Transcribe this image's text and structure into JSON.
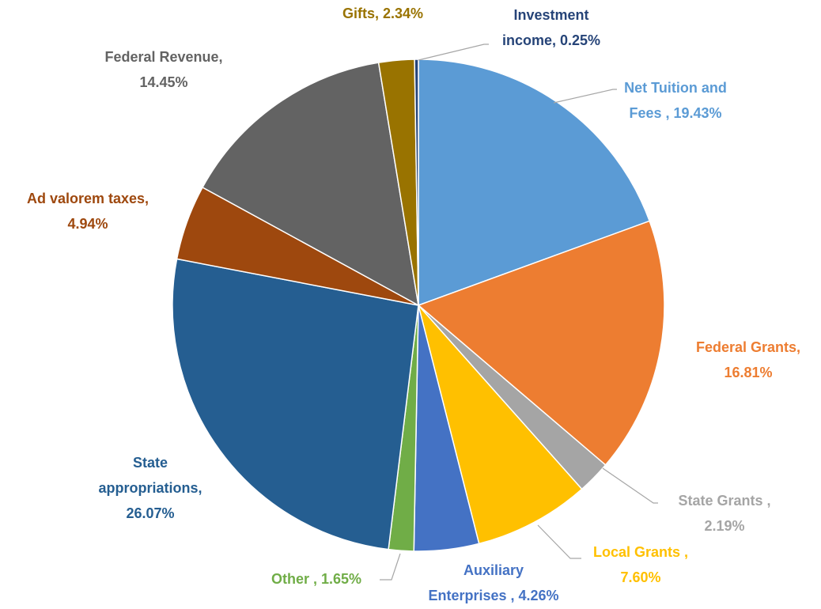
{
  "chart_data": {
    "type": "pie",
    "categories": [
      "Net Tuition and Fees",
      "Federal Grants",
      "State Grants",
      "Local Grants",
      "Auxiliary Enterprises",
      "Other",
      "State appropriations",
      "Ad valorem taxes",
      "Federal Revenue",
      "Gifts",
      "Investment income"
    ],
    "values": [
      19.43,
      16.81,
      2.19,
      7.6,
      4.26,
      1.65,
      26.07,
      4.94,
      14.45,
      2.34,
      0.25
    ],
    "value_labels": [
      "Net Tuition and\nFees , 19.43%",
      "Federal Grants,\n16.81%",
      "State Grants ,\n2.19%",
      "Local Grants ,\n7.60%",
      "Auxiliary\nEnterprises , 4.26%",
      "Other , 1.65%",
      "State\nappropriations,\n26.07%",
      "Ad valorem taxes,\n4.94%",
      "Federal Revenue,\n14.45%",
      "Gifts, 2.34%",
      "Investment\nincome, 0.25%"
    ],
    "colors": [
      "#5b9bd5",
      "#ed7d31",
      "#a5a5a5",
      "#ffc000",
      "#4472c4",
      "#70ad47",
      "#255e91",
      "#9e480e",
      "#636363",
      "#997300",
      "#264478"
    ]
  }
}
